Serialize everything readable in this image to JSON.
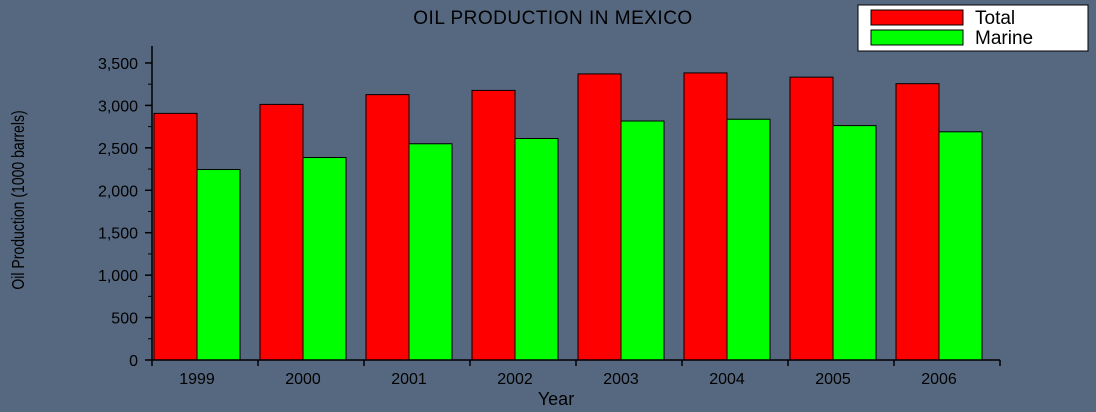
{
  "chart_data": {
    "type": "bar",
    "title": "OIL PRODUCTION IN MEXICO",
    "xlabel": "Year",
    "ylabel": "Oil Production (1000 barrels)",
    "categories": [
      "1999",
      "2000",
      "2001",
      "2002",
      "2003",
      "2004",
      "2005",
      "2006"
    ],
    "series": [
      {
        "name": "Total",
        "color": "#ff0000",
        "values": [
          2906,
          3012,
          3127,
          3177,
          3371,
          3383,
          3333,
          3256
        ]
      },
      {
        "name": "Marine",
        "color": "#00ff00",
        "values": [
          2245,
          2386,
          2548,
          2610,
          2816,
          2837,
          2762,
          2689
        ]
      }
    ],
    "ylim": [
      0,
      3700
    ],
    "yticks": [
      0,
      500,
      1000,
      1500,
      2000,
      2500,
      3000,
      3500
    ],
    "ytick_labels": [
      "0",
      "500",
      "1,000",
      "1,500",
      "2,000",
      "2,500",
      "3,000",
      "3,500"
    ],
    "grid": false,
    "legend_position": "top-right",
    "background_color": "#566880"
  }
}
